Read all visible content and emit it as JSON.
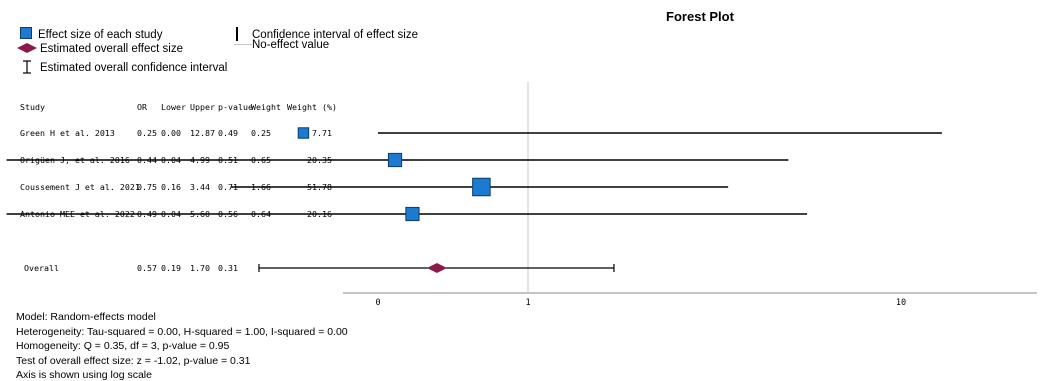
{
  "legend": {
    "study_label": "Effect size of each study",
    "overall_label": "Estimated overall effect size",
    "ci_overall_label": "Estimated overall confidence interval",
    "ci_label": "Confidence interval of effect size",
    "noeffect_label": "No-effect value"
  },
  "colors": {
    "study": "#1c7bd1",
    "overall": "#8b1a4a",
    "noeffect": "#c8c8c8"
  },
  "table": {
    "headers": [
      "Study",
      "OR",
      "Lower",
      "Upper",
      "p-value",
      "Weight",
      "Weight (%)"
    ],
    "rows": [
      [
        "Green H et al. 2013",
        "0.25",
        "0.00",
        "12.87",
        "0.49",
        "0.25",
        "7.71"
      ],
      [
        "Origüen J, et al. 2016",
        "0.44",
        "0.04",
        "4.99",
        "0.51",
        "0.65",
        "20.35"
      ],
      [
        "Coussement J et al. 2021",
        "0.75",
        "0.16",
        "3.44",
        "0.71",
        "1.66",
        "51.78"
      ],
      [
        "Antonio MEE et al. 2022",
        "0.49",
        "0.04",
        "5.60",
        "0.56",
        "0.64",
        "20.16"
      ]
    ],
    "overall": [
      "Overall",
      "0.57",
      "0.19",
      "1.70",
      "0.31"
    ]
  },
  "footer": [
    "Model: Random-effects model",
    "Heterogeneity: Tau-squared = 0.00, H-squared = 1.00, I-squared = 0.00",
    "Homogeneity: Q = 0.35, df = 3, p-value = 0.95",
    "Test of overall effect size: z = -1.02, p-value = 0.31",
    "Axis is shown using log scale"
  ],
  "chart_data": {
    "type": "scatter",
    "title": "Forest Plot",
    "scale": "log",
    "no_effect_value": 1,
    "x_ticks": [
      {
        "value": 0.0,
        "label": "0"
      },
      {
        "value": 1,
        "label": "1"
      },
      {
        "value": 10,
        "label": "10"
      }
    ],
    "studies": [
      {
        "name": "Green H et al. 2013",
        "or": 0.25,
        "lower": 0.0,
        "upper": 12.87,
        "weight_pct": 7.71
      },
      {
        "name": "Origüen J, et al. 2016",
        "or": 0.44,
        "lower": 0.04,
        "upper": 4.99,
        "weight_pct": 20.35
      },
      {
        "name": "Coussement J et al. 2021",
        "or": 0.75,
        "lower": 0.16,
        "upper": 3.44,
        "weight_pct": 51.78
      },
      {
        "name": "Antonio MEE et al. 2022",
        "or": 0.49,
        "lower": 0.04,
        "upper": 5.6,
        "weight_pct": 20.16
      }
    ],
    "overall": {
      "or": 0.57,
      "lower": 0.19,
      "upper": 1.7
    }
  }
}
